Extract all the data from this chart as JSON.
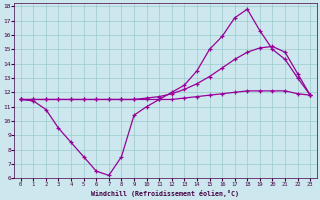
{
  "xlabel": "Windchill (Refroidissement éolien,°C)",
  "bg_color": "#cce8ee",
  "line_color": "#990099",
  "grid_color": "#99cccc",
  "x": [
    0,
    1,
    2,
    3,
    4,
    5,
    6,
    7,
    8,
    9,
    10,
    11,
    12,
    13,
    14,
    15,
    16,
    17,
    18,
    19,
    20,
    21,
    22,
    23
  ],
  "y_line1": [
    11.5,
    11.4,
    10.8,
    9.5,
    8.5,
    7.5,
    6.5,
    6.2,
    7.5,
    10.4,
    11.0,
    11.5,
    12.0,
    12.5,
    13.5,
    15.0,
    15.9,
    17.2,
    17.8,
    16.3,
    15.0,
    14.3,
    13.0,
    11.8
  ],
  "y_line2": [
    11.5,
    11.5,
    11.5,
    11.5,
    11.5,
    11.5,
    11.5,
    11.5,
    11.5,
    11.5,
    11.5,
    11.5,
    11.5,
    11.6,
    11.7,
    11.8,
    11.9,
    12.0,
    12.1,
    12.1,
    12.1,
    12.1,
    11.9,
    11.8
  ],
  "y_line3": [
    11.5,
    11.5,
    11.5,
    11.5,
    11.5,
    11.5,
    11.5,
    11.5,
    11.5,
    11.5,
    11.6,
    11.7,
    11.9,
    12.2,
    12.6,
    13.1,
    13.7,
    14.3,
    14.8,
    15.1,
    15.2,
    14.8,
    13.3,
    11.8
  ],
  "xlim": [
    -0.5,
    23.5
  ],
  "ylim": [
    6,
    18.2
  ],
  "yticks": [
    6,
    7,
    8,
    9,
    10,
    11,
    12,
    13,
    14,
    15,
    16,
    17,
    18
  ],
  "xticks": [
    0,
    1,
    2,
    3,
    4,
    5,
    6,
    7,
    8,
    9,
    10,
    11,
    12,
    13,
    14,
    15,
    16,
    17,
    18,
    19,
    20,
    21,
    22,
    23
  ]
}
